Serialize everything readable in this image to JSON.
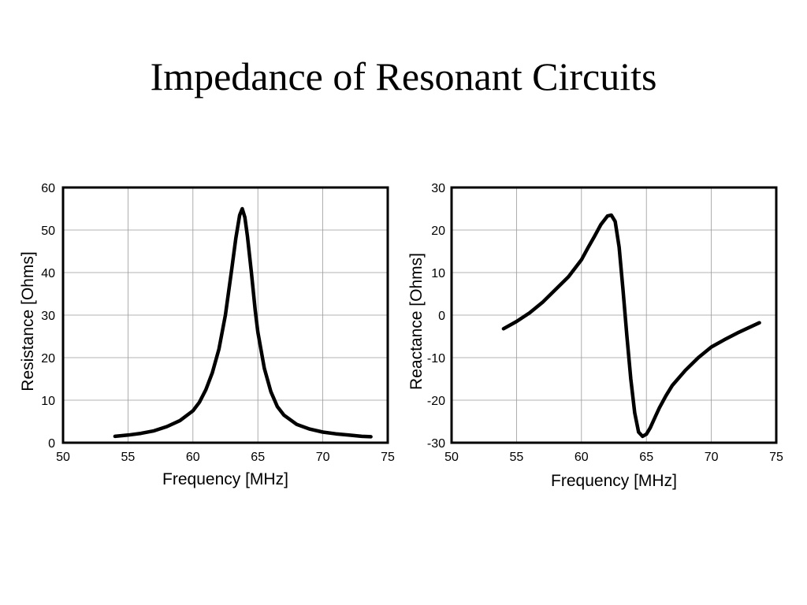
{
  "title": "Impedance of Resonant Circuits",
  "chart_data": [
    {
      "type": "line",
      "title": "",
      "xlabel": "Frequency [MHz]",
      "ylabel": "Resistance [Ohms]",
      "xlim": [
        50,
        75
      ],
      "ylim": [
        0,
        60
      ],
      "xticks": [
        50,
        55,
        60,
        65,
        70,
        75
      ],
      "yticks": [
        0,
        10,
        20,
        30,
        40,
        50,
        60
      ],
      "grid": true,
      "series": [
        {
          "x": [
            54,
            55,
            56,
            57,
            58,
            59,
            60,
            60.5,
            61,
            61.5,
            62,
            62.5,
            63,
            63.3,
            63.6,
            63.8,
            64,
            64.2,
            64.5,
            64.8,
            65,
            65.5,
            66,
            66.5,
            67,
            68,
            69,
            70,
            71,
            72,
            73,
            73.7
          ],
          "y": [
            1.5,
            1.8,
            2.2,
            2.8,
            3.8,
            5.2,
            7.5,
            9.5,
            12.5,
            16.5,
            22,
            30,
            41,
            48,
            53.5,
            55,
            53,
            48.5,
            40,
            31,
            26,
            17.5,
            12,
            8.5,
            6.5,
            4.3,
            3.2,
            2.5,
            2.1,
            1.8,
            1.5,
            1.4
          ]
        }
      ]
    },
    {
      "type": "line",
      "title": "",
      "xlabel": "Frequency [MHz]",
      "ylabel": "Reactance [Ohms]",
      "xlim": [
        50,
        75
      ],
      "ylim": [
        -30,
        30
      ],
      "xticks": [
        50,
        55,
        60,
        65,
        70,
        75
      ],
      "yticks": [
        -30,
        -20,
        -10,
        0,
        10,
        20,
        30
      ],
      "grid": true,
      "series": [
        {
          "x": [
            54,
            55,
            56,
            57,
            58,
            59,
            60,
            60.5,
            61,
            61.5,
            62,
            62.3,
            62.6,
            62.9,
            63.2,
            63.5,
            63.8,
            64.1,
            64.4,
            64.7,
            65,
            65.3,
            65.7,
            66,
            66.5,
            67,
            68,
            69,
            70,
            71,
            72,
            73,
            73.7
          ],
          "y": [
            -3.2,
            -1.5,
            0.5,
            3,
            6,
            9,
            13,
            15.8,
            18.5,
            21.3,
            23.3,
            23.5,
            22,
            16,
            6,
            -5,
            -15,
            -23,
            -27.5,
            -28.5,
            -28,
            -26.5,
            -23.8,
            -21.8,
            -19,
            -16.5,
            -13,
            -10,
            -7.5,
            -5.8,
            -4.2,
            -2.8,
            -1.8
          ]
        }
      ]
    }
  ]
}
